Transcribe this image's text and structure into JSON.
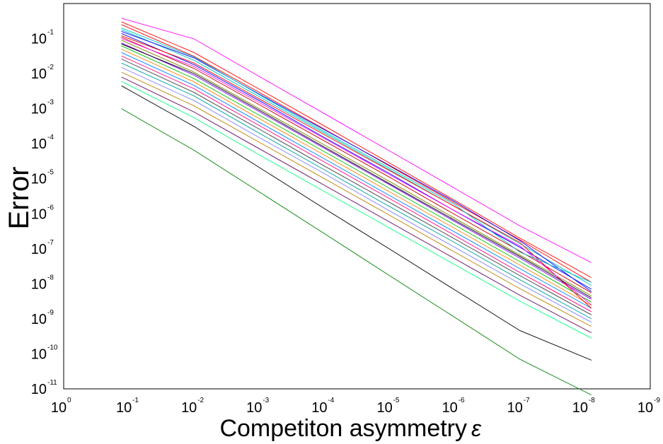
{
  "chart_data": {
    "type": "line",
    "xlabel": "Competiton asymmetry",
    "xlabel_symbol": "ε",
    "ylabel": "Error",
    "xscale": "log",
    "yscale": "log",
    "x_axis_reversed": true,
    "xlim": [
      1,
      1e-09
    ],
    "ylim": [
      1e-11,
      1
    ],
    "grid": false,
    "legend": "none",
    "x_ticks": [
      {
        "base": "10",
        "exp": "0",
        "value": 1
      },
      {
        "base": "10",
        "exp": "-1",
        "value": 0.1
      },
      {
        "base": "10",
        "exp": "-2",
        "value": 0.01
      },
      {
        "base": "10",
        "exp": "-3",
        "value": 0.001
      },
      {
        "base": "10",
        "exp": "-4",
        "value": 0.0001
      },
      {
        "base": "10",
        "exp": "-5",
        "value": 1e-05
      },
      {
        "base": "10",
        "exp": "-6",
        "value": 1e-06
      },
      {
        "base": "10",
        "exp": "-7",
        "value": 1e-07
      },
      {
        "base": "10",
        "exp": "-8",
        "value": 1e-08
      },
      {
        "base": "10",
        "exp": "-9",
        "value": 1e-09
      }
    ],
    "y_ticks": [
      {
        "base": "10",
        "exp": "-1",
        "value": 0.1
      },
      {
        "base": "10",
        "exp": "-2",
        "value": 0.01
      },
      {
        "base": "10",
        "exp": "-3",
        "value": 0.001
      },
      {
        "base": "10",
        "exp": "-4",
        "value": 0.0001
      },
      {
        "base": "10",
        "exp": "-5",
        "value": 1e-05
      },
      {
        "base": "10",
        "exp": "-6",
        "value": 1e-06
      },
      {
        "base": "10",
        "exp": "-7",
        "value": 1e-07
      },
      {
        "base": "10",
        "exp": "-8",
        "value": 1e-08
      },
      {
        "base": "10",
        "exp": "-9",
        "value": 1e-09
      },
      {
        "base": "10",
        "exp": "-10",
        "value": 1e-10
      },
      {
        "base": "10",
        "exp": "-11",
        "value": 1e-11
      }
    ],
    "series_x": [
      0.13,
      0.01,
      0.001,
      0.0001,
      1e-05,
      1e-06,
      1e-07,
      8e-09
    ],
    "series_colors": [
      "#ff0000",
      "#0000ff",
      "#008000",
      "#ff00ff",
      "#00bfbf",
      "#000000",
      "#808000",
      "#ff8000",
      "#8000ff",
      "#00c000",
      "#c00000",
      "#0080ff",
      "#a0a000",
      "#ff0080",
      "#404040",
      "#00a0a0",
      "#8080ff",
      "#c08000",
      "#600060",
      "#00ff80"
    ],
    "series": [
      {
        "values": [
          0.38,
          0.098,
          0.0083,
          0.00072,
          6.2e-05,
          5.3e-06,
          4.5e-07,
          4e-08
        ],
        "color": "#ff00ff"
      },
      {
        "values": [
          0.001,
          6.5e-05,
          4.2e-06,
          2.7e-07,
          1.7e-08,
          1.1e-09,
          7e-11,
          6.7e-12
        ],
        "color": "#008000"
      },
      {
        "values": [
          0.0045,
          0.00031,
          2.1e-05,
          1.4e-06,
          9.8e-08,
          6.7e-09,
          4.6e-10,
          6.6e-11
        ],
        "color": "#000000"
      },
      {
        "values": [
          0.25,
          0.031,
          0.0029,
          0.00026,
          2.3e-05,
          2e-06,
          1.8e-07,
          1.1e-08
        ],
        "color": "#ff0000"
      },
      {
        "values": [
          0.18,
          0.024,
          0.0022,
          0.0002,
          1.8e-05,
          1.6e-06,
          1.4e-07,
          9e-09
        ],
        "color": "#00bfbf"
      },
      {
        "values": [
          0.14,
          0.018,
          0.0017,
          0.00015,
          1.4e-05,
          1.2e-06,
          1.1e-07,
          7e-09
        ],
        "color": "#0000ff"
      },
      {
        "values": [
          0.11,
          0.014,
          0.0013,
          0.00012,
          1.1e-05,
          9.5e-07,
          8.5e-08,
          5.5e-09
        ],
        "color": "#c00000"
      },
      {
        "values": [
          0.09,
          0.011,
          0.001,
          9.2e-05,
          8.3e-06,
          7.4e-07,
          6.6e-08,
          4.5e-09
        ],
        "color": "#808000"
      },
      {
        "values": [
          0.075,
          0.009,
          0.00082,
          7.4e-05,
          6.7e-06,
          6e-07,
          5.4e-08,
          3.6e-09
        ],
        "color": "#8000ff"
      },
      {
        "values": [
          0.062,
          0.0072,
          0.00065,
          5.9e-05,
          5.3e-06,
          4.8e-07,
          4.3e-08,
          3e-09
        ],
        "color": "#00c000"
      },
      {
        "values": [
          0.05,
          0.0058,
          0.00052,
          4.7e-05,
          4.2e-06,
          3.8e-07,
          3.4e-08,
          2.4e-09
        ],
        "color": "#ff8000"
      },
      {
        "values": [
          0.04,
          0.0046,
          0.00041,
          3.7e-05,
          3.3e-06,
          3e-07,
          2.7e-08,
          2e-09
        ],
        "color": "#0080ff"
      },
      {
        "values": [
          0.032,
          0.0037,
          0.00033,
          3e-05,
          2.7e-06,
          2.4e-07,
          2.1e-08,
          1.6e-09
        ],
        "color": "#ff0080"
      },
      {
        "values": [
          0.026,
          0.0029,
          0.00026,
          2.3e-05,
          2.1e-06,
          1.9e-07,
          1.7e-08,
          1.3e-09
        ],
        "color": "#404040"
      },
      {
        "values": [
          0.02,
          0.0023,
          0.0002,
          1.8e-05,
          1.6e-06,
          1.5e-07,
          1.3e-08,
          1e-09
        ],
        "color": "#00a0a0"
      },
      {
        "values": [
          0.015,
          0.0017,
          0.00015,
          1.4e-05,
          1.2e-06,
          1.1e-07,
          1e-08,
          8e-10
        ],
        "color": "#8080ff"
      },
      {
        "values": [
          0.011,
          0.0012,
          0.00011,
          1e-05,
          9e-07,
          8e-08,
          7.2e-09,
          6e-10
        ],
        "color": "#c08000"
      },
      {
        "values": [
          0.008,
          0.0008,
          7.2e-05,
          6.5e-06,
          5.8e-07,
          5.2e-08,
          4.7e-09,
          4e-10
        ],
        "color": "#600060"
      },
      {
        "values": [
          0.006,
          0.00055,
          4.8e-05,
          4.3e-06,
          3.9e-07,
          3.5e-08,
          3.2e-09,
          2.8e-10
        ],
        "color": "#00ff80"
      },
      {
        "values": [
          0.12,
          0.02,
          0.0019,
          0.00018,
          1.7e-05,
          1.6e-06,
          1.5e-07,
          2e-09
        ],
        "color": "#ff0000"
      },
      {
        "values": [
          0.16,
          0.028,
          0.0026,
          0.00025,
          2.4e-05,
          2.2e-06,
          1.7e-07,
          6e-09
        ],
        "color": "#0000ff"
      },
      {
        "values": [
          0.1,
          0.016,
          0.0015,
          0.00014,
          1.3e-05,
          1.2e-06,
          1.2e-07,
          2.5e-09
        ],
        "color": "#ff00ff"
      },
      {
        "values": [
          0.3,
          0.04,
          0.0036,
          0.00032,
          2.8e-05,
          2.4e-06,
          2e-07,
          1.5e-08
        ],
        "color": "#ff0000"
      },
      {
        "values": [
          0.2,
          0.03,
          0.0025,
          0.00022,
          2e-05,
          1.8e-06,
          8e-08,
          1.1e-08
        ],
        "color": "#00bfbf"
      },
      {
        "values": [
          0.07,
          0.01,
          0.0009,
          8e-05,
          7.2e-06,
          6.5e-07,
          6e-08,
          4e-09
        ],
        "color": "#000000"
      }
    ]
  }
}
